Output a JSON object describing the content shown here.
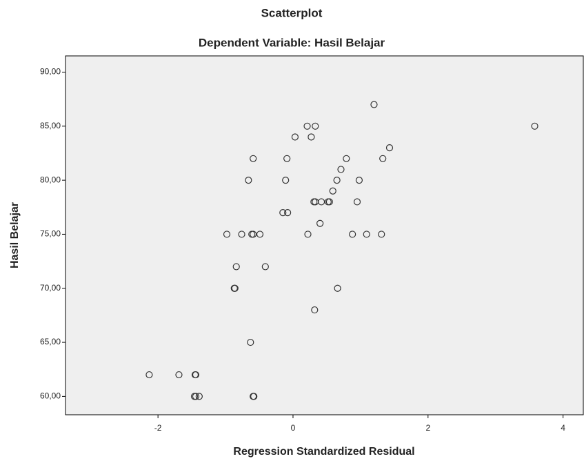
{
  "chart_data": {
    "type": "scatter",
    "title": "Scatterplot",
    "subtitle": "Dependent Variable: Hasil Belajar",
    "x_label": "Regression Standardized Residual",
    "y_label": "Hasil Belajar",
    "xlim": [
      -3.37,
      4.3
    ],
    "ylim": [
      58.3,
      91.5
    ],
    "xticks": [
      -2,
      0,
      2,
      4
    ],
    "yticks": [
      {
        "value": 60,
        "label": "60,00"
      },
      {
        "value": 65,
        "label": "65,00"
      },
      {
        "value": 70,
        "label": "70,00"
      },
      {
        "value": 75,
        "label": "75,00"
      },
      {
        "value": 80,
        "label": "80,00"
      },
      {
        "value": 85,
        "label": "85,00"
      },
      {
        "value": 90,
        "label": "90,00"
      }
    ],
    "color": "#333333",
    "x": [
      1.2,
      0.21,
      0.33,
      3.58,
      0.03,
      0.27,
      1.43,
      -0.59,
      -0.09,
      0.79,
      1.33,
      0.71,
      -0.66,
      -0.11,
      0.65,
      0.98,
      0.59,
      0.31,
      0.33,
      0.42,
      0.52,
      0.54,
      0.95,
      -0.15,
      -0.08,
      0.4,
      -0.98,
      -0.76,
      -0.61,
      -0.59,
      -0.49,
      0.22,
      0.88,
      1.09,
      1.31,
      -0.84,
      -0.41,
      -0.87,
      -0.86,
      0.66,
      0.32,
      -0.63,
      -2.13,
      -1.69,
      -1.45,
      -1.44,
      -1.39,
      -1.46,
      -1.44,
      -0.59,
      -0.58
    ],
    "y": [
      87,
      85,
      85,
      85,
      84,
      84,
      83,
      82,
      82,
      82,
      82,
      81,
      80,
      80,
      80,
      80,
      79,
      78,
      78,
      78,
      78,
      78,
      78,
      77,
      77,
      76,
      75,
      75,
      75,
      75,
      75,
      75,
      75,
      75,
      75,
      72,
      72,
      70,
      70,
      70,
      68,
      65,
      62,
      62,
      62,
      62,
      60,
      60,
      60,
      60,
      60
    ]
  }
}
